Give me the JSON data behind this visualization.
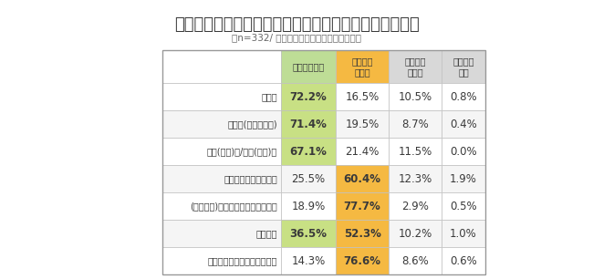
{
  "title": "子どものビデオ撮影時にもっとも使用している機器は？",
  "subtitle": "（n=332/ 単一回答［それぞれの項目毎］）",
  "columns": [
    "ビデオカメラ",
    "スマート\nフォン",
    "デジタル\nカメラ",
    "その他の\n機器"
  ],
  "rows": [
    {
      "label": "運動会",
      "values": [
        "72.2%",
        "16.5%",
        "10.5%",
        "0.8%"
      ]
    },
    {
      "label": "発表会(音楽発表会)",
      "values": [
        "71.4%",
        "19.5%",
        "8.7%",
        "0.4%"
      ]
    },
    {
      "label": "入学(入園)式/卒業(卒園)式",
      "values": [
        "67.1%",
        "21.4%",
        "11.5%",
        "0.0%"
      ]
    },
    {
      "label": "テーマパーク・遊園地",
      "values": [
        "25.5%",
        "60.4%",
        "12.3%",
        "1.9%"
      ]
    },
    {
      "label": "(家の中で)子どもが遊んでいる様子",
      "values": [
        "18.9%",
        "77.7%",
        "2.9%",
        "0.5%"
      ]
    },
    {
      "label": "誕生日会",
      "values": [
        "36.5%",
        "52.3%",
        "10.2%",
        "1.0%"
      ]
    },
    {
      "label": "公園の遊具で遊んでいる様子",
      "values": [
        "14.3%",
        "76.6%",
        "8.6%",
        "0.6%"
      ]
    }
  ],
  "col_header_colors": [
    "#bedd96",
    "#f5b942",
    "#d8d8d8",
    "#d8d8d8"
  ],
  "highlight_green": "#c8e084",
  "highlight_orange": "#f5b942",
  "row_bg_white": "#ffffff",
  "row_bg_gray": "#f5f5f5",
  "border_color": "#c0c0c0",
  "text_color": "#3a3a3a",
  "title_color": "#3a3a3a",
  "subtitle_color": "#666666",
  "bg_color": "#ffffff",
  "green_threshold": 30.0,
  "orange_threshold": 50.0
}
